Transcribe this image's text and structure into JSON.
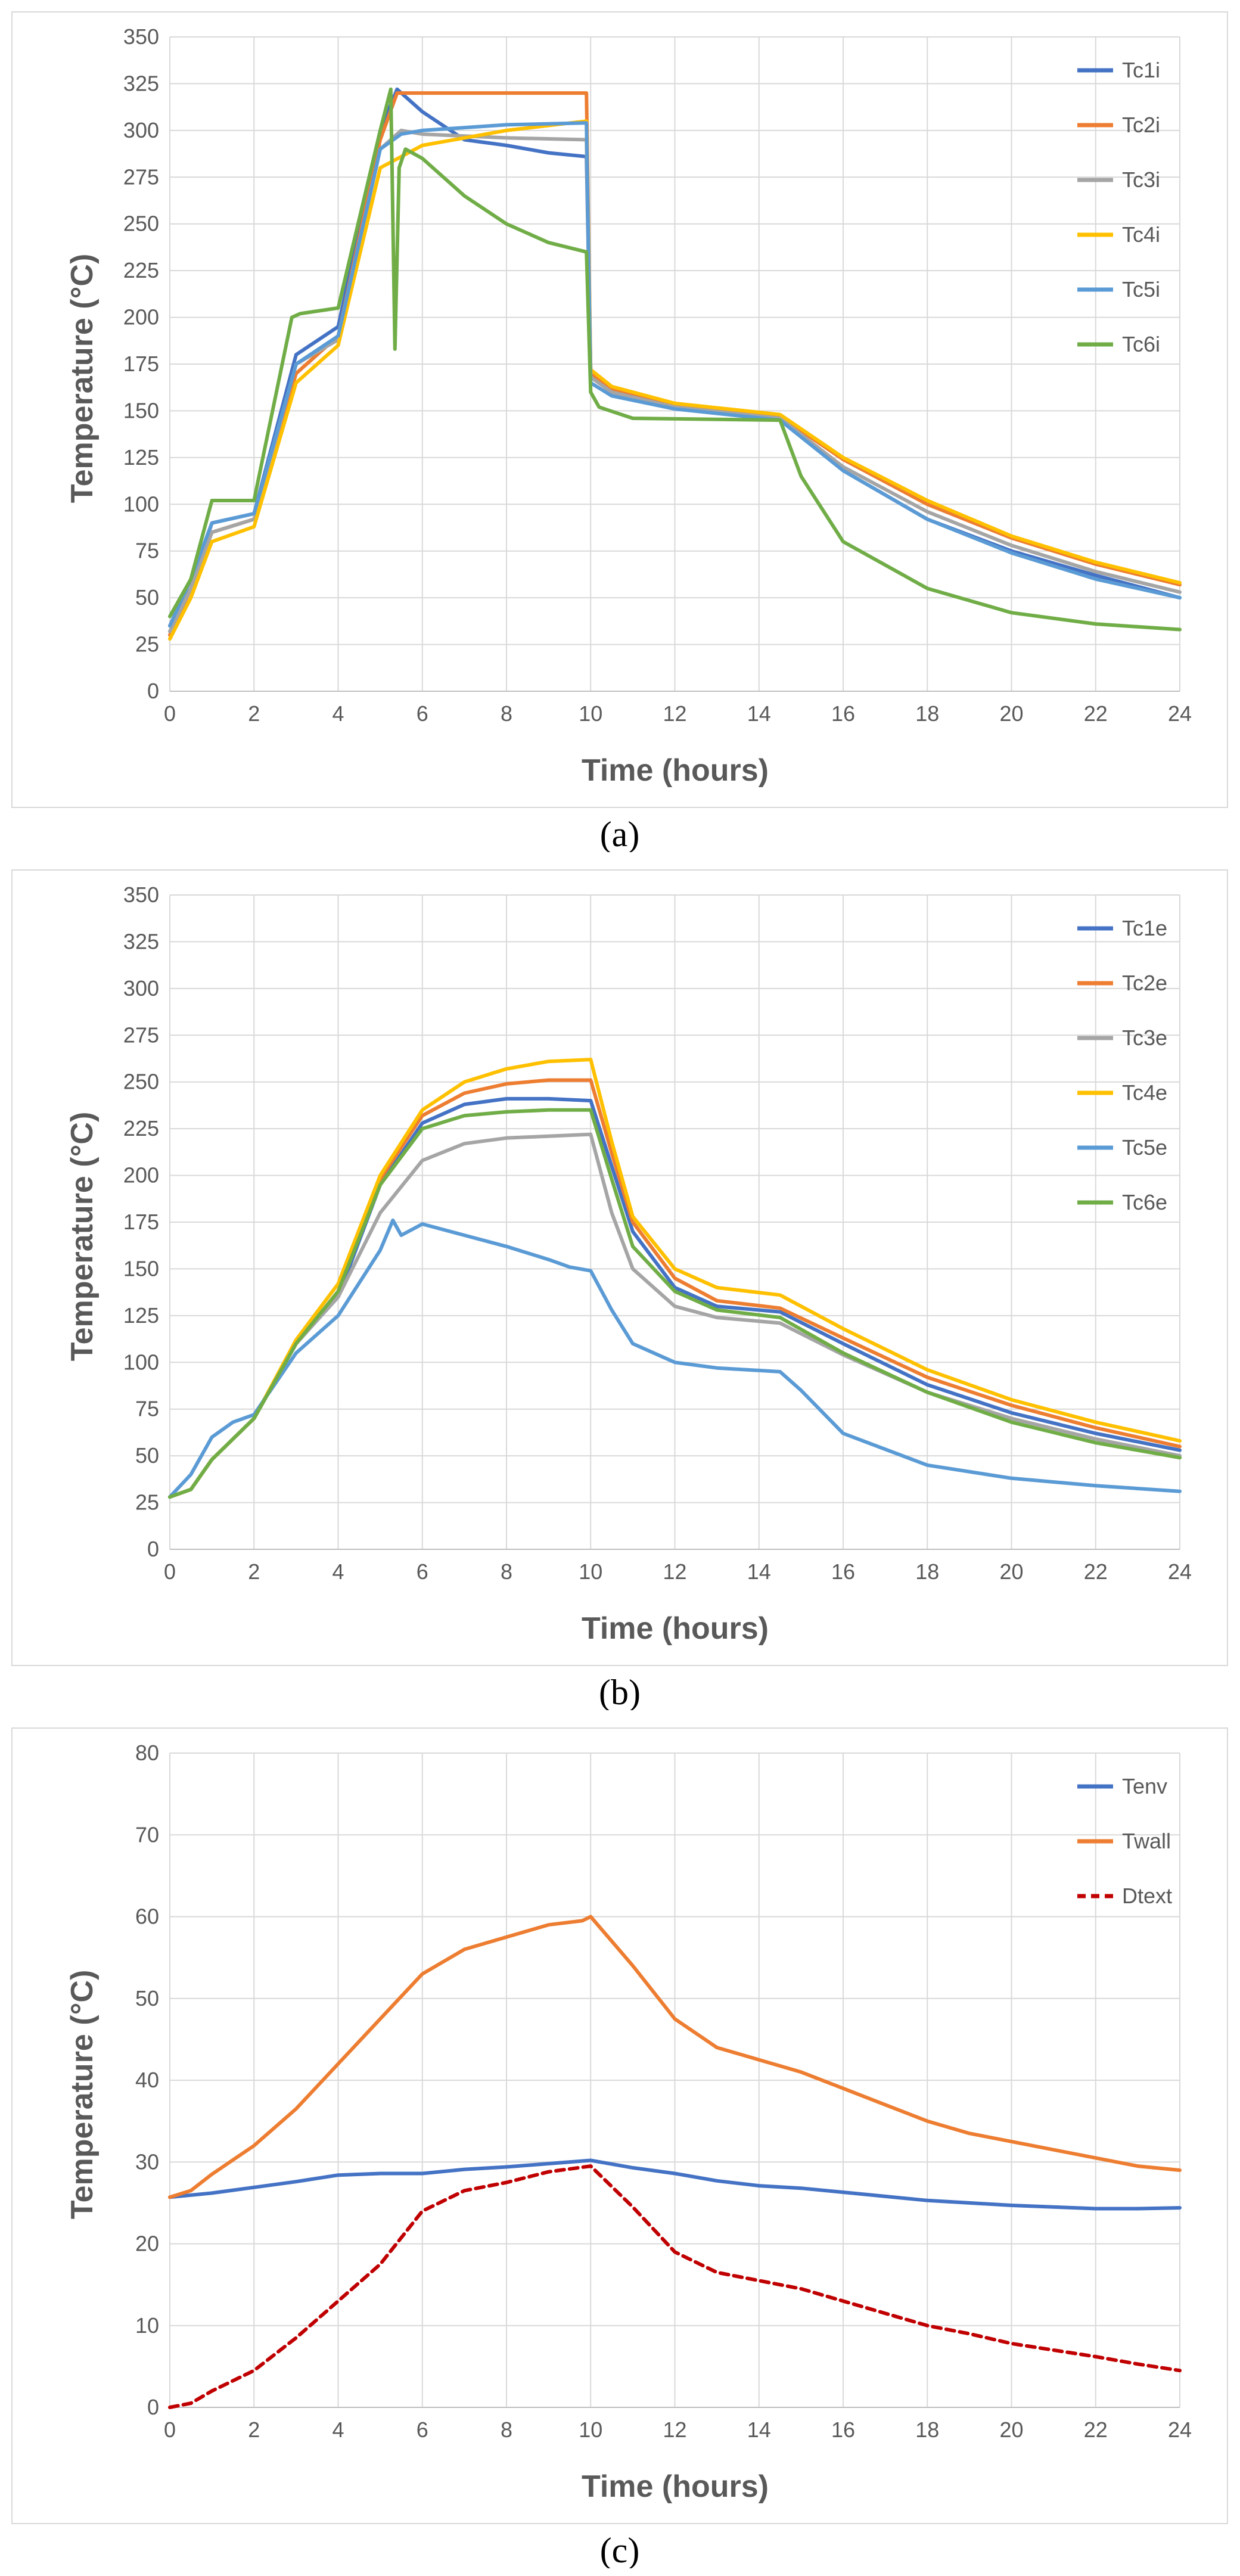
{
  "chart_data": [
    {
      "type": "line",
      "caption": "(a)",
      "xlabel": "Time (hours)",
      "ylabel": "Temperature (°C)",
      "xlim": [
        0,
        24
      ],
      "ylim": [
        0,
        350
      ],
      "xticks": [
        0,
        2,
        4,
        6,
        8,
        10,
        12,
        14,
        16,
        18,
        20,
        22,
        24
      ],
      "yticks": [
        0,
        25,
        50,
        75,
        100,
        125,
        150,
        175,
        200,
        225,
        250,
        275,
        300,
        325,
        350
      ],
      "grid": true,
      "legend_position": "top-right",
      "series": [
        {
          "name": "Tc1i",
          "color": "#4472C4",
          "x": [
            0,
            0.5,
            1,
            2,
            3,
            4,
            5,
            5.4,
            6,
            7,
            8,
            9,
            9.9,
            10,
            10.5,
            12,
            14.5,
            16,
            18,
            20,
            22,
            24
          ],
          "y": [
            35,
            55,
            90,
            95,
            180,
            195,
            300,
            322,
            310,
            295,
            292,
            288,
            286,
            170,
            160,
            152,
            146,
            118,
            92,
            75,
            62,
            50
          ]
        },
        {
          "name": "Tc2i",
          "color": "#ED7D31",
          "x": [
            0,
            0.5,
            1,
            2,
            3,
            4,
            5,
            5.4,
            6,
            8,
            9.9,
            10,
            10.5,
            12,
            14.5,
            16,
            18,
            20,
            22,
            24
          ],
          "y": [
            30,
            55,
            85,
            92,
            170,
            190,
            295,
            320,
            320,
            320,
            320,
            170,
            162,
            153,
            147,
            124,
            100,
            82,
            68,
            57
          ]
        },
        {
          "name": "Tc3i",
          "color": "#A5A5A5",
          "x": [
            0,
            0.5,
            1,
            2,
            3,
            4,
            5,
            5.5,
            6,
            8,
            9.9,
            10,
            10.5,
            12,
            14.5,
            16,
            18,
            20,
            22,
            24
          ],
          "y": [
            32,
            55,
            85,
            92,
            175,
            188,
            290,
            300,
            298,
            296,
            295,
            168,
            160,
            152,
            146,
            120,
            96,
            78,
            64,
            53
          ]
        },
        {
          "name": "Tc4i",
          "color": "#FFC000",
          "x": [
            0,
            0.5,
            1,
            2,
            3,
            4,
            5,
            6,
            8,
            9.9,
            10,
            10.5,
            12,
            14.5,
            16,
            18,
            20,
            22,
            24
          ],
          "y": [
            28,
            50,
            80,
            88,
            165,
            185,
            280,
            292,
            300,
            305,
            172,
            163,
            154,
            148,
            125,
            102,
            83,
            69,
            58
          ]
        },
        {
          "name": "Tc5i",
          "color": "#5B9BD5",
          "x": [
            0,
            0.5,
            1,
            2,
            3,
            4,
            5,
            5.5,
            6,
            8,
            9.9,
            10,
            10.5,
            12,
            14.5,
            16,
            18,
            20,
            22,
            24
          ],
          "y": [
            35,
            60,
            90,
            95,
            175,
            190,
            290,
            298,
            300,
            303,
            304,
            165,
            158,
            151,
            145,
            118,
            92,
            74,
            60,
            50
          ]
        },
        {
          "name": "Tc6i",
          "color": "#70AD47",
          "x": [
            0,
            0.5,
            1,
            2,
            2.9,
            3.1,
            4,
            5,
            5.25,
            5.35,
            5.45,
            5.6,
            6,
            7,
            8,
            9,
            9.9,
            10,
            10.2,
            11,
            14.5,
            15,
            16,
            18,
            20,
            22,
            24
          ],
          "y": [
            40,
            60,
            102,
            102,
            200,
            202,
            205,
            300,
            322,
            183,
            280,
            290,
            285,
            265,
            250,
            240,
            235,
            160,
            152,
            146,
            145,
            115,
            80,
            55,
            42,
            36,
            33
          ]
        }
      ]
    },
    {
      "type": "line",
      "caption": "(b)",
      "xlabel": "Time (hours)",
      "ylabel": "Temperature (°C)",
      "xlim": [
        0,
        24
      ],
      "ylim": [
        0,
        350
      ],
      "xticks": [
        0,
        2,
        4,
        6,
        8,
        10,
        12,
        14,
        16,
        18,
        20,
        22,
        24
      ],
      "yticks": [
        0,
        25,
        50,
        75,
        100,
        125,
        150,
        175,
        200,
        225,
        250,
        275,
        300,
        325,
        350
      ],
      "grid": true,
      "legend_position": "top-right",
      "series": [
        {
          "name": "Tc1e",
          "color": "#4472C4",
          "x": [
            0,
            0.5,
            1,
            2,
            3,
            4,
            5,
            6,
            7,
            8,
            9,
            10,
            10.5,
            11,
            12,
            13,
            14.5,
            16,
            18,
            20,
            22,
            24
          ],
          "y": [
            28,
            32,
            48,
            70,
            110,
            135,
            195,
            228,
            238,
            241,
            241,
            240,
            205,
            170,
            140,
            130,
            127,
            110,
            88,
            73,
            62,
            53
          ]
        },
        {
          "name": "Tc2e",
          "color": "#ED7D31",
          "x": [
            0,
            0.5,
            1,
            2,
            3,
            4,
            5,
            6,
            7,
            8,
            9,
            10,
            10.5,
            11,
            12,
            13,
            14.5,
            16,
            18,
            20,
            22,
            24
          ],
          "y": [
            28,
            32,
            48,
            70,
            110,
            138,
            198,
            232,
            244,
            249,
            251,
            251,
            212,
            175,
            145,
            133,
            129,
            113,
            92,
            77,
            65,
            55
          ]
        },
        {
          "name": "Tc3e",
          "color": "#A5A5A5",
          "x": [
            0,
            0.5,
            1,
            2,
            3,
            4,
            5,
            6,
            7,
            8,
            9,
            10,
            10.5,
            11,
            12,
            13,
            14.5,
            16,
            18,
            20,
            22,
            24
          ],
          "y": [
            28,
            32,
            48,
            70,
            110,
            135,
            180,
            208,
            217,
            220,
            221,
            222,
            180,
            150,
            130,
            124,
            121,
            104,
            84,
            70,
            59,
            50
          ]
        },
        {
          "name": "Tc4e",
          "color": "#FFC000",
          "x": [
            0,
            0.5,
            1,
            2,
            3,
            4,
            5,
            6,
            7,
            8,
            9,
            10,
            10.5,
            11,
            12,
            13,
            14.5,
            16,
            18,
            20,
            22,
            24
          ],
          "y": [
            28,
            32,
            48,
            70,
            112,
            142,
            200,
            235,
            250,
            257,
            261,
            262,
            218,
            178,
            150,
            140,
            136,
            118,
            96,
            80,
            68,
            58
          ]
        },
        {
          "name": "Tc5e",
          "color": "#5B9BD5",
          "x": [
            0,
            0.5,
            1,
            1.5,
            2,
            3,
            4,
            5,
            5.3,
            5.5,
            6,
            7,
            8,
            9,
            9.5,
            10,
            10.5,
            11,
            12,
            13,
            14.5,
            15,
            16,
            18,
            20,
            22,
            24
          ],
          "y": [
            28,
            40,
            60,
            68,
            72,
            105,
            125,
            160,
            176,
            168,
            174,
            168,
            162,
            155,
            151,
            149,
            128,
            110,
            100,
            97,
            95,
            85,
            62,
            45,
            38,
            34,
            31
          ]
        },
        {
          "name": "Tc6e",
          "color": "#70AD47",
          "x": [
            0,
            0.5,
            1,
            2,
            3,
            4,
            5,
            6,
            7,
            8,
            9,
            10,
            10.5,
            11,
            12,
            13,
            14.5,
            16,
            18,
            20,
            22,
            24
          ],
          "y": [
            28,
            32,
            48,
            70,
            110,
            138,
            195,
            225,
            232,
            234,
            235,
            235,
            198,
            162,
            138,
            128,
            124,
            105,
            84,
            68,
            57,
            49
          ]
        }
      ]
    },
    {
      "type": "line",
      "caption": "(c)",
      "xlabel": "Time (hours)",
      "ylabel": "Temperature (°C)",
      "xlim": [
        0,
        24
      ],
      "ylim": [
        0,
        80
      ],
      "xticks": [
        0,
        2,
        4,
        6,
        8,
        10,
        12,
        14,
        16,
        18,
        20,
        22,
        24
      ],
      "yticks": [
        0,
        10,
        20,
        30,
        40,
        50,
        60,
        70,
        80
      ],
      "grid": true,
      "legend_position": "top-right",
      "series": [
        {
          "name": "Tenv",
          "color": "#4472C4",
          "dashed": false,
          "x": [
            0,
            1,
            2,
            3,
            4,
            5,
            6,
            7,
            8,
            9,
            10,
            11,
            12,
            13,
            14,
            15,
            16,
            17,
            18,
            19,
            20,
            21,
            22,
            23,
            24
          ],
          "y": [
            25.7,
            26.2,
            26.9,
            27.6,
            28.4,
            28.6,
            28.6,
            29.1,
            29.4,
            29.8,
            30.2,
            29.3,
            28.6,
            27.7,
            27.1,
            26.8,
            26.3,
            25.8,
            25.3,
            25.0,
            24.7,
            24.5,
            24.3,
            24.3,
            24.4
          ]
        },
        {
          "name": "Twall",
          "color": "#ED7D31",
          "dashed": false,
          "x": [
            0,
            0.5,
            1,
            2,
            3,
            4,
            5,
            6,
            7,
            8,
            9,
            9.8,
            10,
            11,
            12,
            13,
            14,
            15,
            16,
            17,
            18,
            19,
            20,
            21,
            22,
            23,
            24
          ],
          "y": [
            25.7,
            26.5,
            28.5,
            32.0,
            36.5,
            42.0,
            47.5,
            53.0,
            56.0,
            57.5,
            59.0,
            59.5,
            60.0,
            54.0,
            47.5,
            44.0,
            42.5,
            41.0,
            39.0,
            37.0,
            35.0,
            33.5,
            32.5,
            31.5,
            30.5,
            29.5,
            29.0
          ]
        },
        {
          "name": "Dtext",
          "color": "#C00000",
          "dashed": true,
          "x": [
            0,
            0.5,
            1,
            2,
            3,
            4,
            5,
            6,
            7,
            8,
            9,
            10,
            11,
            12,
            13,
            14,
            15,
            16,
            17,
            18,
            19,
            20,
            21,
            22,
            23,
            24
          ],
          "y": [
            0,
            0.5,
            2.0,
            4.5,
            8.5,
            13.0,
            17.5,
            24.0,
            26.5,
            27.5,
            28.8,
            29.5,
            24.5,
            19.0,
            16.5,
            15.5,
            14.5,
            13.0,
            11.5,
            10.0,
            9.0,
            7.8,
            7.0,
            6.2,
            5.3,
            4.5
          ]
        }
      ]
    }
  ]
}
